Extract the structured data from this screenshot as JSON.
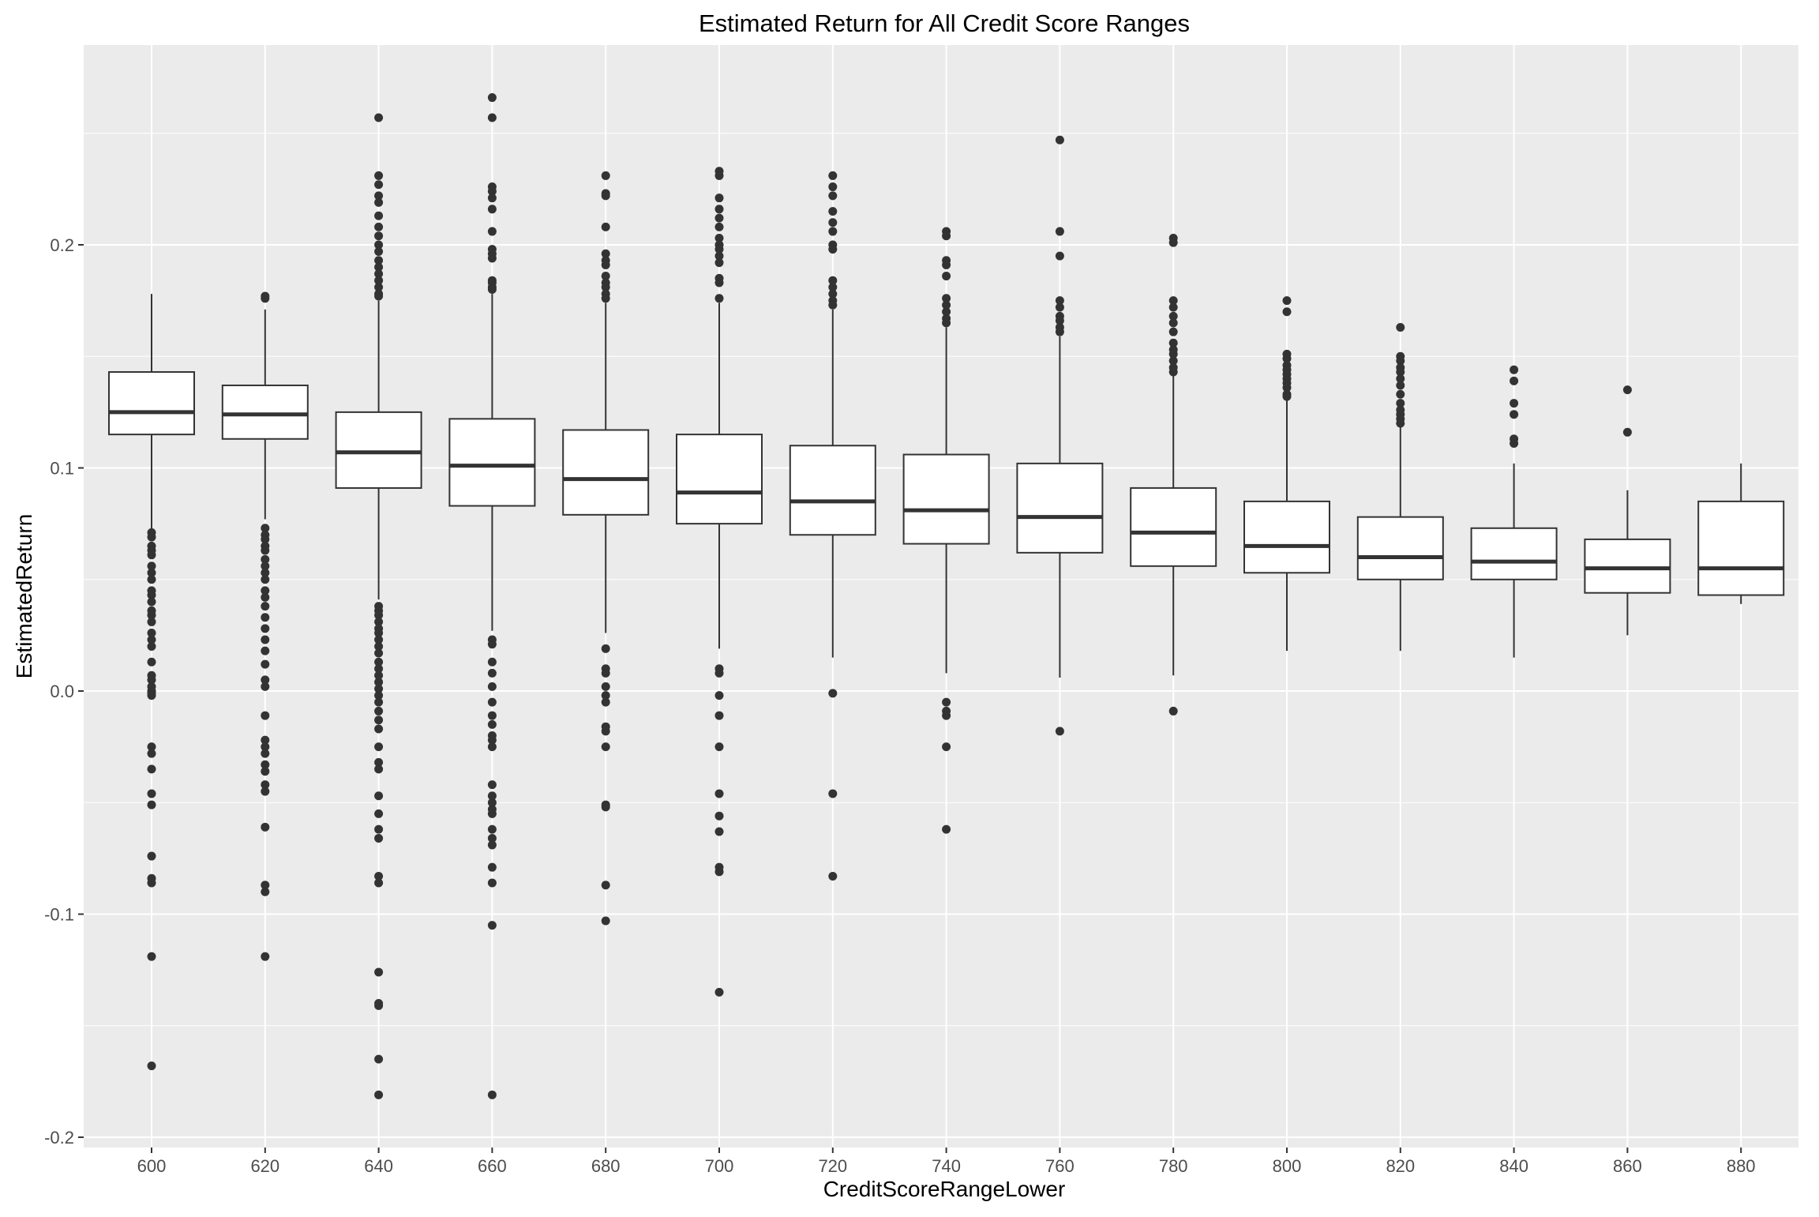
{
  "chart_data": {
    "type": "boxplot",
    "title": "Estimated Return for All Credit Score Ranges",
    "xlabel": "CreditScoreRangeLower",
    "ylabel": "EstimatedReturn",
    "ylim": [
      -0.2,
      0.28
    ],
    "y_ticks": [
      -0.2,
      -0.1,
      0.0,
      0.1,
      0.2
    ],
    "y_tick_labels": [
      "-0.2",
      "-0.1",
      "0.0",
      "0.1",
      "0.2"
    ],
    "grid": true,
    "categories": [
      "600",
      "620",
      "640",
      "660",
      "680",
      "700",
      "720",
      "740",
      "760",
      "780",
      "800",
      "820",
      "840",
      "860",
      "880"
    ],
    "boxes": [
      {
        "category": "600",
        "whisker_low": 0.072,
        "q1": 0.115,
        "median": 0.125,
        "q3": 0.143,
        "whisker_high": 0.178,
        "outliers": [
          0.071,
          0.069,
          0.065,
          0.063,
          0.061,
          0.056,
          0.053,
          0.05,
          0.045,
          0.043,
          0.04,
          0.036,
          0.034,
          0.031,
          0.026,
          0.023,
          0.02,
          0.013,
          0.007,
          0.005,
          0.002,
          0.0,
          -0.001,
          -0.002,
          -0.025,
          -0.028,
          -0.035,
          -0.046,
          -0.051,
          -0.074,
          -0.084,
          -0.086,
          -0.119,
          -0.168
        ]
      },
      {
        "category": "620",
        "whisker_low": 0.077,
        "q1": 0.113,
        "median": 0.124,
        "q3": 0.137,
        "whisker_high": 0.171,
        "outliers": [
          0.177,
          0.176,
          0.073,
          0.07,
          0.068,
          0.065,
          0.063,
          0.059,
          0.056,
          0.053,
          0.05,
          0.045,
          0.042,
          0.038,
          0.033,
          0.028,
          0.023,
          0.018,
          0.012,
          0.005,
          0.002,
          -0.011,
          -0.022,
          -0.025,
          -0.028,
          -0.033,
          -0.036,
          -0.042,
          -0.045,
          -0.061,
          -0.087,
          -0.09,
          -0.119
        ]
      },
      {
        "category": "640",
        "whisker_low": 0.041,
        "q1": 0.091,
        "median": 0.107,
        "q3": 0.125,
        "whisker_high": 0.175,
        "outliers": [
          0.257,
          0.231,
          0.227,
          0.222,
          0.219,
          0.213,
          0.208,
          0.204,
          0.2,
          0.197,
          0.193,
          0.19,
          0.187,
          0.184,
          0.181,
          0.178,
          0.177,
          0.038,
          0.036,
          0.034,
          0.031,
          0.028,
          0.026,
          0.023,
          0.02,
          0.017,
          0.013,
          0.01,
          0.007,
          0.004,
          0.001,
          -0.002,
          -0.005,
          -0.009,
          -0.013,
          -0.017,
          -0.025,
          -0.032,
          -0.035,
          -0.047,
          -0.055,
          -0.062,
          -0.066,
          -0.083,
          -0.086,
          -0.126,
          -0.14,
          -0.141,
          -0.165,
          -0.181
        ]
      },
      {
        "category": "660",
        "whisker_low": 0.027,
        "q1": 0.083,
        "median": 0.101,
        "q3": 0.122,
        "whisker_high": 0.178,
        "outliers": [
          0.266,
          0.257,
          0.226,
          0.224,
          0.221,
          0.216,
          0.206,
          0.198,
          0.196,
          0.194,
          0.184,
          0.183,
          0.181,
          0.18,
          0.023,
          0.021,
          0.013,
          0.008,
          0.002,
          -0.005,
          -0.011,
          -0.015,
          -0.02,
          -0.022,
          -0.025,
          -0.042,
          -0.047,
          -0.05,
          -0.053,
          -0.055,
          -0.062,
          -0.066,
          -0.069,
          -0.079,
          -0.086,
          -0.105,
          -0.181
        ]
      },
      {
        "category": "680",
        "whisker_low": 0.026,
        "q1": 0.079,
        "median": 0.095,
        "q3": 0.117,
        "whisker_high": 0.174,
        "outliers": [
          0.231,
          0.223,
          0.222,
          0.208,
          0.196,
          0.193,
          0.191,
          0.186,
          0.183,
          0.181,
          0.178,
          0.176,
          0.019,
          0.01,
          0.008,
          0.002,
          -0.002,
          -0.005,
          -0.016,
          -0.018,
          -0.025,
          -0.051,
          -0.052,
          -0.087,
          -0.103
        ]
      },
      {
        "category": "700",
        "whisker_low": 0.019,
        "q1": 0.075,
        "median": 0.089,
        "q3": 0.115,
        "whisker_high": 0.174,
        "outliers": [
          0.233,
          0.231,
          0.221,
          0.216,
          0.212,
          0.208,
          0.203,
          0.2,
          0.198,
          0.195,
          0.192,
          0.185,
          0.183,
          0.176,
          0.01,
          0.008,
          -0.002,
          -0.011,
          -0.025,
          -0.046,
          -0.056,
          -0.063,
          -0.079,
          -0.081,
          -0.135
        ]
      },
      {
        "category": "720",
        "whisker_low": 0.015,
        "q1": 0.07,
        "median": 0.085,
        "q3": 0.11,
        "whisker_high": 0.171,
        "outliers": [
          0.231,
          0.226,
          0.222,
          0.215,
          0.21,
          0.206,
          0.2,
          0.198,
          0.184,
          0.181,
          0.178,
          0.175,
          0.173,
          -0.001,
          -0.046,
          -0.083
        ]
      },
      {
        "category": "740",
        "whisker_low": 0.008,
        "q1": 0.066,
        "median": 0.081,
        "q3": 0.106,
        "whisker_high": 0.163,
        "outliers": [
          0.206,
          0.204,
          0.193,
          0.191,
          0.186,
          0.176,
          0.173,
          0.17,
          0.167,
          0.165,
          -0.005,
          -0.009,
          -0.011,
          -0.025,
          -0.062
        ]
      },
      {
        "category": "760",
        "whisker_low": 0.006,
        "q1": 0.062,
        "median": 0.078,
        "q3": 0.102,
        "whisker_high": 0.159,
        "outliers": [
          0.247,
          0.206,
          0.195,
          0.175,
          0.172,
          0.168,
          0.166,
          0.163,
          0.161,
          -0.018
        ]
      },
      {
        "category": "780",
        "whisker_low": 0.007,
        "q1": 0.056,
        "median": 0.071,
        "q3": 0.091,
        "whisker_high": 0.142,
        "outliers": [
          0.203,
          0.201,
          0.175,
          0.172,
          0.168,
          0.165,
          0.161,
          0.156,
          0.153,
          0.151,
          0.148,
          0.145,
          0.143,
          -0.009
        ]
      },
      {
        "category": "800",
        "whisker_low": 0.018,
        "q1": 0.053,
        "median": 0.065,
        "q3": 0.085,
        "whisker_high": 0.131,
        "outliers": [
          0.175,
          0.17,
          0.151,
          0.149,
          0.146,
          0.144,
          0.142,
          0.14,
          0.138,
          0.136,
          0.133,
          0.132
        ]
      },
      {
        "category": "820",
        "whisker_low": 0.018,
        "q1": 0.05,
        "median": 0.06,
        "q3": 0.078,
        "whisker_high": 0.119,
        "outliers": [
          0.163,
          0.15,
          0.148,
          0.145,
          0.143,
          0.14,
          0.137,
          0.133,
          0.129,
          0.126,
          0.124,
          0.122,
          0.12
        ]
      },
      {
        "category": "840",
        "whisker_low": 0.015,
        "q1": 0.05,
        "median": 0.058,
        "q3": 0.073,
        "whisker_high": 0.102,
        "outliers": [
          0.144,
          0.139,
          0.129,
          0.124,
          0.113,
          0.111
        ]
      },
      {
        "category": "860",
        "whisker_low": 0.025,
        "q1": 0.044,
        "median": 0.055,
        "q3": 0.068,
        "whisker_high": 0.09,
        "outliers": [
          0.135,
          0.116
        ]
      },
      {
        "category": "880",
        "whisker_low": 0.039,
        "q1": 0.043,
        "median": 0.055,
        "q3": 0.085,
        "whisker_high": 0.102,
        "outliers": []
      }
    ]
  }
}
